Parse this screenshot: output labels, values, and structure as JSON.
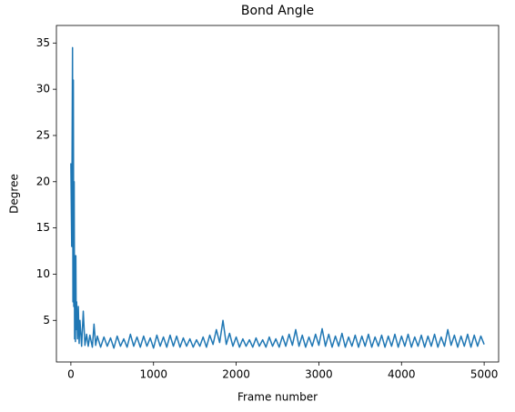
{
  "chart_data": {
    "type": "line",
    "title": "Bond Angle",
    "xlabel": "Frame number",
    "ylabel": "Degree",
    "x": [
      0,
      10,
      20,
      25,
      30,
      35,
      40,
      45,
      50,
      55,
      60,
      65,
      70,
      80,
      90,
      100,
      110,
      130,
      150,
      170,
      190,
      210,
      230,
      260,
      280,
      300,
      320,
      360,
      400,
      440,
      480,
      520,
      560,
      600,
      640,
      680,
      720,
      760,
      800,
      840,
      880,
      920,
      960,
      1000,
      1040,
      1080,
      1120,
      1160,
      1200,
      1240,
      1280,
      1320,
      1360,
      1400,
      1440,
      1480,
      1520,
      1560,
      1600,
      1640,
      1680,
      1720,
      1760,
      1800,
      1840,
      1880,
      1920,
      1960,
      2000,
      2040,
      2080,
      2120,
      2160,
      2200,
      2240,
      2280,
      2320,
      2360,
      2400,
      2440,
      2480,
      2520,
      2560,
      2600,
      2640,
      2680,
      2720,
      2760,
      2800,
      2840,
      2880,
      2920,
      2960,
      3000,
      3040,
      3080,
      3120,
      3160,
      3200,
      3240,
      3280,
      3320,
      3360,
      3400,
      3440,
      3480,
      3520,
      3560,
      3600,
      3640,
      3680,
      3720,
      3760,
      3800,
      3840,
      3880,
      3920,
      3960,
      4000,
      4040,
      4080,
      4120,
      4160,
      4200,
      4240,
      4280,
      4320,
      4360,
      4400,
      4440,
      4480,
      4520,
      4560,
      4600,
      4640,
      4680,
      4720,
      4760,
      4800,
      4840,
      4880,
      4920,
      4960,
      5000
    ],
    "series": [
      {
        "name": "Bond Angle",
        "color": "#1f77b4",
        "values": [
          22,
          13,
          34.5,
          7,
          31,
          6.5,
          20,
          3,
          12,
          2.7,
          12,
          4,
          7,
          3,
          6.5,
          2.5,
          5,
          2.2,
          6,
          2.3,
          3.5,
          2.2,
          3.4,
          2.1,
          4.6,
          2.3,
          3.3,
          2.1,
          3.2,
          2.2,
          3.1,
          2.0,
          3.3,
          2.2,
          3.0,
          2.1,
          3.5,
          2.2,
          3.2,
          2.1,
          3.3,
          2.2,
          3.1,
          2.0,
          3.4,
          2.2,
          3.2,
          2.1,
          3.4,
          2.2,
          3.3,
          2.1,
          3.1,
          2.2,
          3.0,
          2.1,
          2.9,
          2.2,
          3.2,
          2.1,
          3.4,
          2.4,
          4.0,
          2.6,
          5.0,
          2.4,
          3.6,
          2.2,
          3.2,
          2.1,
          3.0,
          2.2,
          2.9,
          2.1,
          3.1,
          2.2,
          2.9,
          2.1,
          3.2,
          2.2,
          3.0,
          2.1,
          3.3,
          2.2,
          3.5,
          2.3,
          4.0,
          2.2,
          3.4,
          2.1,
          3.2,
          2.2,
          3.5,
          2.3,
          4.1,
          2.2,
          3.5,
          2.1,
          3.3,
          2.2,
          3.6,
          2.1,
          3.2,
          2.2,
          3.4,
          2.1,
          3.3,
          2.2,
          3.5,
          2.1,
          3.2,
          2.2,
          3.4,
          2.1,
          3.3,
          2.2,
          3.5,
          2.1,
          3.3,
          2.2,
          3.5,
          2.1,
          3.2,
          2.2,
          3.4,
          2.1,
          3.3,
          2.2,
          3.5,
          2.1,
          3.2,
          2.2,
          4.0,
          2.3,
          3.4,
          2.1,
          3.3,
          2.2,
          3.5,
          2.1,
          3.4,
          2.2,
          3.3,
          2.4
        ]
      }
    ],
    "xlim": [
      -175,
      5175
    ],
    "xticks": [
      0,
      1000,
      2000,
      3000,
      4000,
      5000
    ],
    "ylim": [
      0.5,
      36.9
    ],
    "yticks": [
      5,
      10,
      15,
      20,
      25,
      30,
      35
    ]
  }
}
